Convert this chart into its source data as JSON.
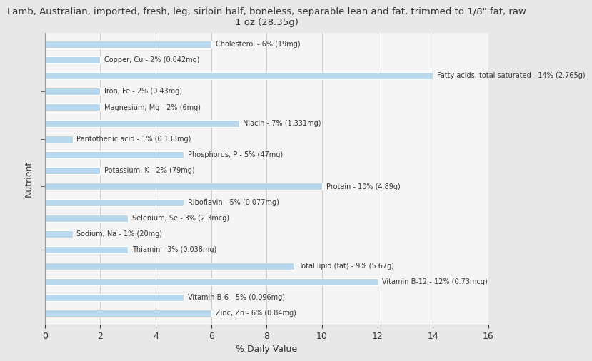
{
  "title": "Lamb, Australian, imported, fresh, leg, sirloin half, boneless, separable lean and fat, trimmed to 1/8\" fat, raw\n1 oz (28.35g)",
  "xlabel": "% Daily Value",
  "ylabel": "Nutrient",
  "xlim": [
    0,
    16
  ],
  "xticks": [
    0,
    2,
    4,
    6,
    8,
    10,
    12,
    14,
    16
  ],
  "background_color": "#e8e8e8",
  "plot_background_color": "#f5f5f5",
  "bar_color": "#b8d8f0",
  "bar_edge_color": "#ffffff",
  "label_color": "#333333",
  "nutrients": [
    {
      "label": "Cholesterol - 6% (19mg)",
      "value": 6
    },
    {
      "label": "Copper, Cu - 2% (0.042mg)",
      "value": 2
    },
    {
      "label": "Fatty acids, total saturated - 14% (2.765g)",
      "value": 14
    },
    {
      "label": "Iron, Fe - 2% (0.43mg)",
      "value": 2
    },
    {
      "label": "Magnesium, Mg - 2% (6mg)",
      "value": 2
    },
    {
      "label": "Niacin - 7% (1.331mg)",
      "value": 7
    },
    {
      "label": "Pantothenic acid - 1% (0.133mg)",
      "value": 1
    },
    {
      "label": "Phosphorus, P - 5% (47mg)",
      "value": 5
    },
    {
      "label": "Potassium, K - 2% (79mg)",
      "value": 2
    },
    {
      "label": "Protein - 10% (4.89g)",
      "value": 10
    },
    {
      "label": "Riboflavin - 5% (0.077mg)",
      "value": 5
    },
    {
      "label": "Selenium, Se - 3% (2.3mcg)",
      "value": 3
    },
    {
      "label": "Sodium, Na - 1% (20mg)",
      "value": 1
    },
    {
      "label": "Thiamin - 3% (0.038mg)",
      "value": 3
    },
    {
      "label": "Total lipid (fat) - 9% (5.67g)",
      "value": 9
    },
    {
      "label": "Vitamin B-12 - 12% (0.73mcg)",
      "value": 12
    },
    {
      "label": "Vitamin B-6 - 5% (0.096mg)",
      "value": 5
    },
    {
      "label": "Zinc, Zn - 6% (0.84mg)",
      "value": 6
    }
  ]
}
